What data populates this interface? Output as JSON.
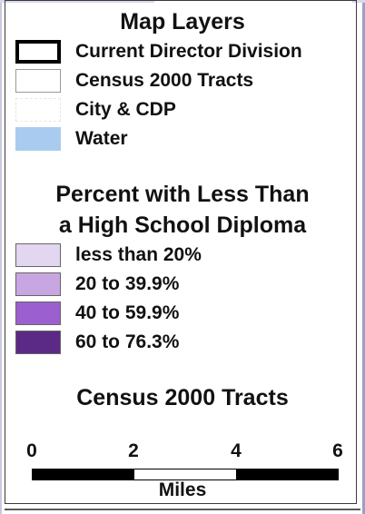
{
  "map_layers": {
    "title": "Map Layers",
    "items": [
      {
        "label": "Current Director Division",
        "swatch": "thick-black-outline"
      },
      {
        "label": "Census 2000 Tracts",
        "swatch": "thin-gray-outline"
      },
      {
        "label": "City & CDP",
        "swatch": "faint-outline"
      },
      {
        "label": "Water",
        "swatch": "fill",
        "color": "#a9cbef"
      }
    ]
  },
  "percent_legend": {
    "title_line1": "Percent with Less Than",
    "title_line2": "a High School Diploma",
    "classes": [
      {
        "label": "less than 20%",
        "color": "#e2d6f0"
      },
      {
        "label": "20 to 39.9%",
        "color": "#c7a6e1"
      },
      {
        "label": "40 to 59.9%",
        "color": "#9c5fd0"
      },
      {
        "label": "60 to 76.3%",
        "color": "#5b2a86"
      }
    ]
  },
  "scale": {
    "title": "Census 2000 Tracts",
    "ticks": [
      "0",
      "2",
      "4",
      "6"
    ],
    "unit": "Miles",
    "segment_colors": [
      "#000000",
      "#ffffff",
      "#000000"
    ]
  }
}
